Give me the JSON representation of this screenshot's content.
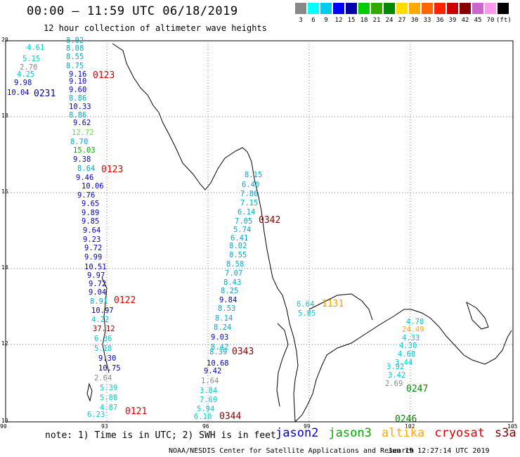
{
  "header": {
    "title": "00:00 – 11:59 UTC 06/18/2019",
    "subtitle": "12 hour collection of altimeter wave heights"
  },
  "scale": {
    "labels": [
      "3",
      "6",
      "9",
      "12",
      "15",
      "18",
      "21",
      "24",
      "27",
      "30",
      "33",
      "36",
      "39",
      "42",
      "45",
      "70",
      "(ft)"
    ],
    "colors": [
      "#888888",
      "#00ffff",
      "#00ccee",
      "#0000ff",
      "#0000aa",
      "#00cc00",
      "#33aa00",
      "#008800",
      "#ffdd00",
      "#ffaa00",
      "#ff6600",
      "#ff2200",
      "#cc0000",
      "#880000",
      "#cc66cc",
      "#ff99ee",
      "#000000"
    ]
  },
  "map": {
    "lat_labels": [
      "20",
      "18",
      "16",
      "14",
      "12",
      "10"
    ],
    "lon_labels": [
      "90",
      "93",
      "96",
      "99",
      "102",
      "105"
    ]
  },
  "tracks": [
    {
      "color": "#00cccc",
      "pts": [
        "4.61"
      ]
    },
    {
      "color": "#00cccc",
      "pts": [
        "5.15"
      ]
    },
    {
      "color": "#888888",
      "pts": [
        "2.70"
      ]
    },
    {
      "color": "#00cccc",
      "pts": [
        "4.25"
      ]
    },
    {
      "color": "#0000cc",
      "pts": [
        "9.98"
      ]
    },
    {
      "color": "#0000cc",
      "pts": [
        "10.04"
      ]
    },
    {
      "color": "#00aacc",
      "pts": [
        "8.02",
        "8.08",
        "8.55",
        "8.75"
      ]
    },
    {
      "color": "#0000cc",
      "pts": [
        "9.16",
        "9.10",
        "9.60"
      ]
    },
    {
      "color": "#00aacc",
      "pts": [
        "8.86"
      ]
    },
    {
      "color": "#0000cc",
      "pts": [
        "10.33"
      ]
    },
    {
      "color": "#00aacc",
      "pts": [
        "8.86"
      ]
    },
    {
      "color": "#0000cc",
      "pts": [
        "9.62"
      ]
    },
    {
      "color": "#66dd44",
      "pts": [
        "12.72"
      ]
    },
    {
      "color": "#00aacc",
      "pts": [
        "8.70"
      ]
    },
    {
      "color": "#00aa00",
      "pts": [
        "15.03"
      ]
    },
    {
      "color": "#0000cc",
      "pts": [
        "9.38"
      ]
    },
    {
      "color": "#00aacc",
      "pts": [
        "8.64"
      ]
    },
    {
      "color": "#0000cc",
      "pts": [
        "9.46",
        "10.06",
        "9.76",
        "9.65",
        "9.89",
        "9.85",
        "9.64",
        "9.23",
        "9.72",
        "9.99",
        "10.51",
        "9.97",
        "9.72",
        "9.04"
      ]
    },
    {
      "color": "#00aacc",
      "pts": [
        "8.91"
      ]
    },
    {
      "color": "#0000cc",
      "pts": [
        "10.97"
      ]
    },
    {
      "color": "#00cccc",
      "pts": [
        "4.22"
      ]
    },
    {
      "color": "#880000",
      "pts": [
        "37.12"
      ]
    },
    {
      "color": "#00cccc",
      "pts": [
        "6.36",
        "5.18"
      ]
    },
    {
      "color": "#0000cc",
      "pts": [
        "9.30",
        "10.75"
      ]
    },
    {
      "color": "#888888",
      "pts": [
        "2.64"
      ]
    },
    {
      "color": "#00cccc",
      "pts": [
        "5.39",
        "5.88",
        "4.87",
        "6.23"
      ]
    },
    {
      "color": "#00aacc",
      "pts": [
        "8.15",
        "6.40",
        "7.86",
        "7.15",
        "6.14",
        "7.05",
        "5.74",
        "6.41",
        "8.02",
        "8.55",
        "8.58",
        "7.07",
        "8.43",
        "8.25"
      ]
    },
    {
      "color": "#0000cc",
      "pts": [
        "9.84"
      ]
    },
    {
      "color": "#00aacc",
      "pts": [
        "8.53",
        "8.14",
        "8.24"
      ]
    },
    {
      "color": "#0000cc",
      "pts": [
        "9.03"
      ]
    },
    {
      "color": "#00aacc",
      "pts": [
        "8.42",
        "8.39"
      ]
    },
    {
      "color": "#0000cc",
      "pts": [
        "10.68",
        "9.42"
      ]
    },
    {
      "color": "#888888",
      "pts": [
        "1.64"
      ]
    },
    {
      "color": "#00cccc",
      "pts": [
        "3.84"
      ]
    },
    {
      "color": "#00cccc",
      "pts": [
        "7.69",
        "5.94",
        "6.10",
        "6.64",
        "5.85",
        "4.78"
      ]
    },
    {
      "color": "#ffaa00",
      "pts": [
        "24.49"
      ]
    },
    {
      "color": "#00cccc",
      "pts": [
        "4.33",
        "4.30",
        "4.68",
        "3.44",
        "3.92",
        "3.42"
      ]
    },
    {
      "color": "#888888",
      "pts": [
        "2.69"
      ]
    }
  ],
  "pass_labels": [
    {
      "text": "0123",
      "color": "#dd0000"
    },
    {
      "text": "0231",
      "color": "#0000aa"
    },
    {
      "text": "0123",
      "color": "#dd0000"
    },
    {
      "text": "0342",
      "color": "#880000"
    },
    {
      "text": "0122",
      "color": "#dd0000"
    },
    {
      "text": "0343",
      "color": "#880000"
    },
    {
      "text": "0121",
      "color": "#dd0000"
    },
    {
      "text": "0344",
      "color": "#880000"
    },
    {
      "text": "1131",
      "color": "#ff9900"
    },
    {
      "text": "0247",
      "color": "#008800"
    },
    {
      "text": "0246",
      "color": "#008800"
    }
  ],
  "footer": {
    "note": "note: 1) Time is in UTC; 2) SWH is in feet",
    "satellites": [
      {
        "name": "jason2",
        "color": "#0000cc"
      },
      {
        "name": "jason3",
        "color": "#00aa00"
      },
      {
        "name": "altika",
        "color": "#ffaa00"
      },
      {
        "name": "cryosat",
        "color": "#dd0000"
      },
      {
        "name": "s3a",
        "color": "#880000"
      }
    ],
    "credit": "NOAA/NESDIS Center for Satellite Applications and Research",
    "timestamp": "Jun 19 12:27:14 UTC 2019"
  }
}
